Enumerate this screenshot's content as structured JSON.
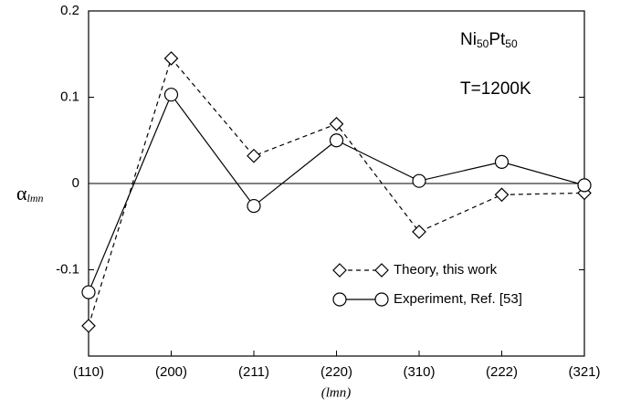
{
  "chart_data": {
    "type": "line",
    "annotation_parts": [
      "Ni",
      "50",
      "Pt",
      "50"
    ],
    "annotation_2": "T=1200K",
    "ylabel_parts": [
      "α",
      "lmn"
    ],
    "xlabel": "(lmn)",
    "categories": [
      "(110)",
      "(200)",
      "(211)",
      "(220)",
      "(310)",
      "(222)",
      "(321)"
    ],
    "series": [
      {
        "name": "Theory, this work",
        "color": "#000000",
        "dash": true,
        "marker": "diamond",
        "values": [
          -0.165,
          0.145,
          0.032,
          0.069,
          -0.056,
          -0.013,
          -0.011
        ]
      },
      {
        "name": "Experiment, Ref. [53]",
        "color": "#000000",
        "dash": false,
        "marker": "circle",
        "values": [
          -0.126,
          0.103,
          -0.026,
          0.05,
          0.003,
          0.025,
          -0.002
        ]
      }
    ],
    "ylim": [
      -0.2,
      0.2
    ],
    "yticks": [
      -0.1,
      0,
      0.1,
      0.2
    ],
    "zero_line": true,
    "legend": "lower right"
  }
}
